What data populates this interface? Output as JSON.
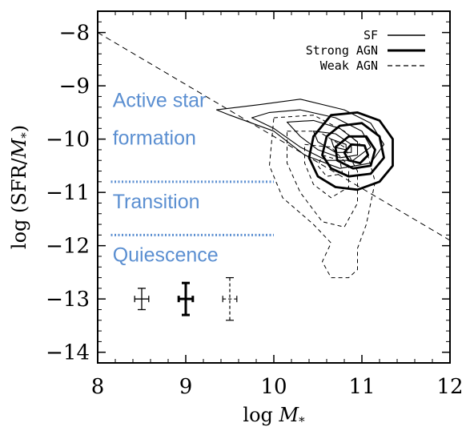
{
  "chart_data": {
    "type": "scatter",
    "title": "",
    "xlabel": "log M*",
    "ylabel": "log (SFR/M*)",
    "xlim": [
      8,
      12
    ],
    "ylim": [
      -14.2,
      -7.6
    ],
    "x_ticks": [
      {
        "value": 8,
        "label": "8"
      },
      {
        "value": 9,
        "label": "9"
      },
      {
        "value": 10,
        "label": "10"
      },
      {
        "value": 11,
        "label": "11"
      },
      {
        "value": 12,
        "label": "12"
      }
    ],
    "y_ticks": [
      {
        "value": -8,
        "label": "−8"
      },
      {
        "value": -9,
        "label": "−9"
      },
      {
        "value": -10,
        "label": "−10"
      },
      {
        "value": -11,
        "label": "−11"
      },
      {
        "value": -12,
        "label": "−12"
      },
      {
        "value": -13,
        "label": "−13"
      },
      {
        "value": -14,
        "label": "−14"
      }
    ],
    "grid": false,
    "legend_position": "top-right",
    "accent_color": "#5b8fd1",
    "series": [
      {
        "name": "SF",
        "style": "thin-solid",
        "contours": [
          [
            [
              9.85,
              -9.35
            ],
            [
              10.3,
              -9.25
            ],
            [
              10.8,
              -9.45
            ],
            [
              11.1,
              -9.7
            ],
            [
              11.25,
              -10.1
            ],
            [
              11.1,
              -10.45
            ],
            [
              10.75,
              -10.55
            ],
            [
              10.35,
              -10.3
            ],
            [
              10.0,
              -9.85
            ],
            [
              9.5,
              -9.55
            ],
            [
              9.35,
              -9.45
            ],
            [
              9.85,
              -9.35
            ]
          ],
          [
            [
              9.95,
              -9.5
            ],
            [
              10.3,
              -9.45
            ],
            [
              10.7,
              -9.6
            ],
            [
              11.0,
              -9.85
            ],
            [
              11.1,
              -10.15
            ],
            [
              10.9,
              -10.4
            ],
            [
              10.6,
              -10.4
            ],
            [
              10.3,
              -10.15
            ],
            [
              10.0,
              -9.8
            ],
            [
              9.75,
              -9.6
            ],
            [
              9.95,
              -9.5
            ]
          ],
          [
            [
              10.15,
              -9.68
            ],
            [
              10.45,
              -9.65
            ],
            [
              10.75,
              -9.8
            ],
            [
              10.95,
              -10.05
            ],
            [
              10.95,
              -10.3
            ],
            [
              10.75,
              -10.35
            ],
            [
              10.5,
              -10.2
            ],
            [
              10.3,
              -9.95
            ],
            [
              10.15,
              -9.68
            ]
          ],
          [
            [
              10.45,
              -9.85
            ],
            [
              10.7,
              -9.9
            ],
            [
              10.88,
              -10.1
            ],
            [
              10.88,
              -10.25
            ],
            [
              10.7,
              -10.25
            ],
            [
              10.5,
              -10.05
            ],
            [
              10.45,
              -9.85
            ]
          ],
          [
            [
              10.65,
              -10.0
            ],
            [
              10.82,
              -10.1
            ],
            [
              10.82,
              -10.2
            ],
            [
              10.68,
              -10.15
            ],
            [
              10.65,
              -10.0
            ]
          ]
        ]
      },
      {
        "name": "Strong AGN",
        "style": "thick-solid",
        "contours": [
          [
            [
              10.65,
              -9.55
            ],
            [
              10.95,
              -9.5
            ],
            [
              11.2,
              -9.65
            ],
            [
              11.35,
              -10.0
            ],
            [
              11.35,
              -10.5
            ],
            [
              11.2,
              -10.8
            ],
            [
              10.95,
              -10.95
            ],
            [
              10.7,
              -10.9
            ],
            [
              10.5,
              -10.7
            ],
            [
              10.4,
              -10.35
            ],
            [
              10.45,
              -9.95
            ],
            [
              10.65,
              -9.55
            ]
          ],
          [
            [
              10.75,
              -9.75
            ],
            [
              11.0,
              -9.7
            ],
            [
              11.2,
              -9.95
            ],
            [
              11.25,
              -10.35
            ],
            [
              11.1,
              -10.65
            ],
            [
              10.85,
              -10.7
            ],
            [
              10.65,
              -10.55
            ],
            [
              10.55,
              -10.3
            ],
            [
              10.6,
              -9.95
            ],
            [
              10.75,
              -9.75
            ]
          ],
          [
            [
              10.85,
              -9.95
            ],
            [
              11.05,
              -9.95
            ],
            [
              11.15,
              -10.2
            ],
            [
              11.1,
              -10.5
            ],
            [
              10.9,
              -10.55
            ],
            [
              10.72,
              -10.4
            ],
            [
              10.7,
              -10.15
            ],
            [
              10.85,
              -9.95
            ]
          ],
          [
            [
              10.88,
              -10.1
            ],
            [
              11.03,
              -10.12
            ],
            [
              11.07,
              -10.3
            ],
            [
              10.98,
              -10.45
            ],
            [
              10.85,
              -10.4
            ],
            [
              10.8,
              -10.25
            ],
            [
              10.88,
              -10.1
            ]
          ]
        ]
      },
      {
        "name": "Weak AGN",
        "style": "dashed",
        "contours": [
          [
            [
              10.0,
              -9.6
            ],
            [
              10.45,
              -9.55
            ],
            [
              10.8,
              -9.85
            ],
            [
              11.05,
              -10.2
            ],
            [
              11.15,
              -10.8
            ],
            [
              11.05,
              -11.6
            ],
            [
              10.95,
              -12.05
            ],
            [
              10.95,
              -12.45
            ],
            [
              10.85,
              -12.6
            ],
            [
              10.65,
              -12.6
            ],
            [
              10.55,
              -12.3
            ],
            [
              10.65,
              -11.95
            ],
            [
              10.45,
              -11.6
            ],
            [
              10.1,
              -11.1
            ],
            [
              9.95,
              -10.5
            ],
            [
              10.0,
              -9.6
            ]
          ],
          [
            [
              10.15,
              -9.85
            ],
            [
              10.5,
              -9.85
            ],
            [
              10.8,
              -10.15
            ],
            [
              10.95,
              -10.6
            ],
            [
              10.95,
              -11.2
            ],
            [
              10.8,
              -11.65
            ],
            [
              10.55,
              -11.55
            ],
            [
              10.3,
              -11.0
            ],
            [
              10.15,
              -10.45
            ],
            [
              10.15,
              -9.85
            ]
          ],
          [
            [
              10.35,
              -10.1
            ],
            [
              10.65,
              -10.15
            ],
            [
              10.85,
              -10.5
            ],
            [
              10.85,
              -10.9
            ],
            [
              10.65,
              -11.1
            ],
            [
              10.45,
              -10.85
            ],
            [
              10.35,
              -10.45
            ],
            [
              10.35,
              -10.1
            ]
          ],
          [
            [
              10.55,
              -10.3
            ],
            [
              10.75,
              -10.4
            ],
            [
              10.78,
              -10.65
            ],
            [
              10.6,
              -10.7
            ],
            [
              10.5,
              -10.5
            ],
            [
              10.55,
              -10.3
            ]
          ]
        ]
      }
    ],
    "reference_lines": [
      {
        "style": "dashed",
        "color": "#000000",
        "points": [
          [
            8,
            -8.0
          ],
          [
            12,
            -11.9
          ]
        ]
      },
      {
        "style": "dotted",
        "color": "#5b8fd1",
        "points": [
          [
            8.15,
            -10.8
          ],
          [
            10.0,
            -10.8
          ]
        ]
      },
      {
        "style": "dotted",
        "color": "#5b8fd1",
        "points": [
          [
            8.15,
            -11.8
          ],
          [
            10.0,
            -11.8
          ]
        ]
      }
    ],
    "error_bars": [
      {
        "series": "SF",
        "x": 8.5,
        "y": -13.0,
        "xerr": 0.08,
        "yerr": 0.2
      },
      {
        "series": "Strong AGN",
        "x": 9.0,
        "y": -13.0,
        "xerr": 0.08,
        "yerr": 0.3
      },
      {
        "series": "Weak AGN",
        "x": 9.5,
        "y": -13.0,
        "xerr": 0.08,
        "yerr": 0.4
      }
    ],
    "annotations": [
      {
        "text": "Active star",
        "x": 8.17,
        "y": -9.4,
        "color": "#5b8fd1"
      },
      {
        "text": "formation",
        "x": 8.17,
        "y": -10.1,
        "color": "#5b8fd1"
      },
      {
        "text": "Transition",
        "x": 8.17,
        "y": -11.3,
        "color": "#5b8fd1"
      },
      {
        "text": "Quiescence",
        "x": 8.17,
        "y": -12.3,
        "color": "#5b8fd1"
      }
    ]
  }
}
